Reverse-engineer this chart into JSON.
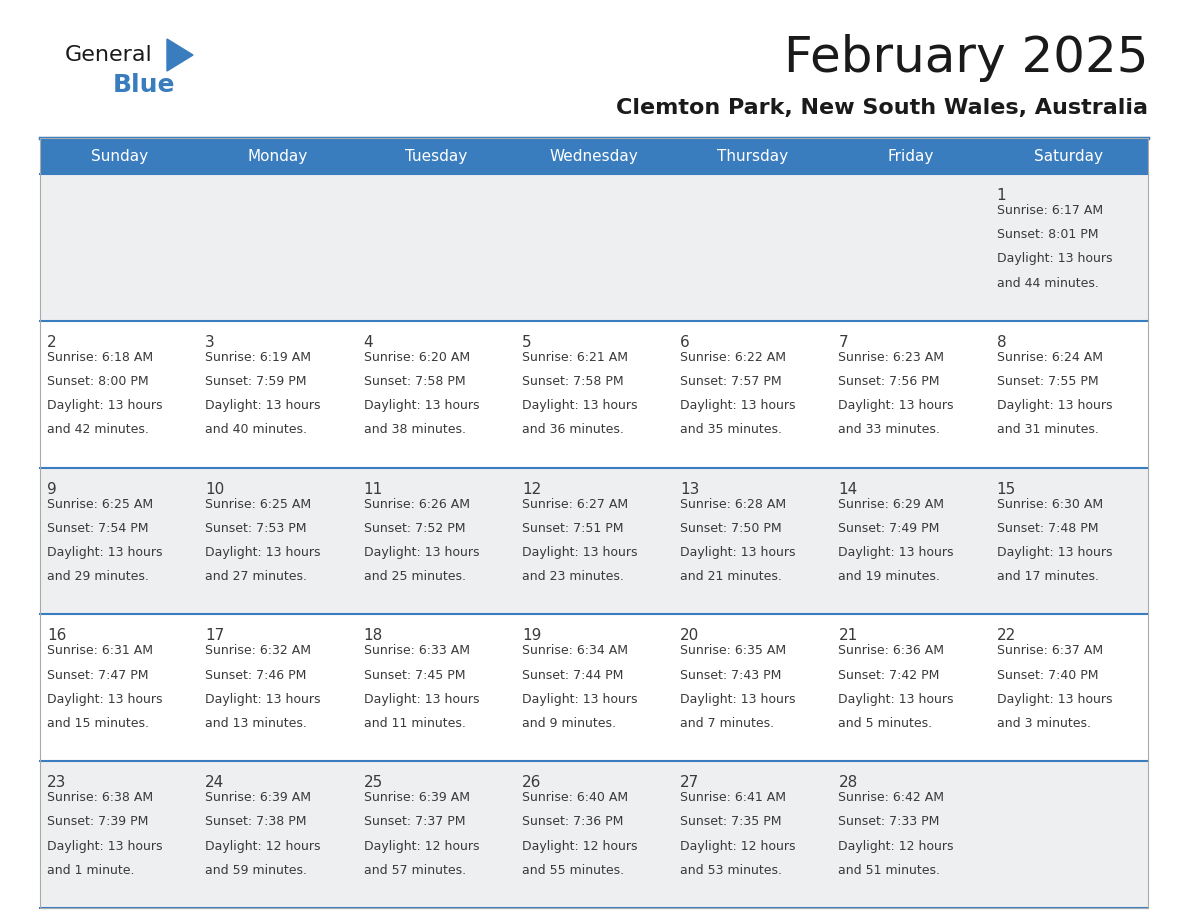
{
  "title": "February 2025",
  "subtitle": "Clemton Park, New South Wales, Australia",
  "header_bg_color": "#3a7dbf",
  "header_text_color": "#ffffff",
  "cell_bg_odd": "#eeeff1",
  "cell_bg_even": "#ffffff",
  "row_line_color": "#3a7dbf",
  "text_color": "#3a3a3a",
  "day_headers": [
    "Sunday",
    "Monday",
    "Tuesday",
    "Wednesday",
    "Thursday",
    "Friday",
    "Saturday"
  ],
  "weeks": [
    [
      {
        "day": null
      },
      {
        "day": null
      },
      {
        "day": null
      },
      {
        "day": null
      },
      {
        "day": null
      },
      {
        "day": null
      },
      {
        "day": 1,
        "sunrise": "6:17 AM",
        "sunset": "8:01 PM",
        "daylight_hours": 13,
        "daylight_minutes": 44
      }
    ],
    [
      {
        "day": 2,
        "sunrise": "6:18 AM",
        "sunset": "8:00 PM",
        "daylight_hours": 13,
        "daylight_minutes": 42
      },
      {
        "day": 3,
        "sunrise": "6:19 AM",
        "sunset": "7:59 PM",
        "daylight_hours": 13,
        "daylight_minutes": 40
      },
      {
        "day": 4,
        "sunrise": "6:20 AM",
        "sunset": "7:58 PM",
        "daylight_hours": 13,
        "daylight_minutes": 38
      },
      {
        "day": 5,
        "sunrise": "6:21 AM",
        "sunset": "7:58 PM",
        "daylight_hours": 13,
        "daylight_minutes": 36
      },
      {
        "day": 6,
        "sunrise": "6:22 AM",
        "sunset": "7:57 PM",
        "daylight_hours": 13,
        "daylight_minutes": 35
      },
      {
        "day": 7,
        "sunrise": "6:23 AM",
        "sunset": "7:56 PM",
        "daylight_hours": 13,
        "daylight_minutes": 33
      },
      {
        "day": 8,
        "sunrise": "6:24 AM",
        "sunset": "7:55 PM",
        "daylight_hours": 13,
        "daylight_minutes": 31
      }
    ],
    [
      {
        "day": 9,
        "sunrise": "6:25 AM",
        "sunset": "7:54 PM",
        "daylight_hours": 13,
        "daylight_minutes": 29
      },
      {
        "day": 10,
        "sunrise": "6:25 AM",
        "sunset": "7:53 PM",
        "daylight_hours": 13,
        "daylight_minutes": 27
      },
      {
        "day": 11,
        "sunrise": "6:26 AM",
        "sunset": "7:52 PM",
        "daylight_hours": 13,
        "daylight_minutes": 25
      },
      {
        "day": 12,
        "sunrise": "6:27 AM",
        "sunset": "7:51 PM",
        "daylight_hours": 13,
        "daylight_minutes": 23
      },
      {
        "day": 13,
        "sunrise": "6:28 AM",
        "sunset": "7:50 PM",
        "daylight_hours": 13,
        "daylight_minutes": 21
      },
      {
        "day": 14,
        "sunrise": "6:29 AM",
        "sunset": "7:49 PM",
        "daylight_hours": 13,
        "daylight_minutes": 19
      },
      {
        "day": 15,
        "sunrise": "6:30 AM",
        "sunset": "7:48 PM",
        "daylight_hours": 13,
        "daylight_minutes": 17
      }
    ],
    [
      {
        "day": 16,
        "sunrise": "6:31 AM",
        "sunset": "7:47 PM",
        "daylight_hours": 13,
        "daylight_minutes": 15
      },
      {
        "day": 17,
        "sunrise": "6:32 AM",
        "sunset": "7:46 PM",
        "daylight_hours": 13,
        "daylight_minutes": 13
      },
      {
        "day": 18,
        "sunrise": "6:33 AM",
        "sunset": "7:45 PM",
        "daylight_hours": 13,
        "daylight_minutes": 11
      },
      {
        "day": 19,
        "sunrise": "6:34 AM",
        "sunset": "7:44 PM",
        "daylight_hours": 13,
        "daylight_minutes": 9
      },
      {
        "day": 20,
        "sunrise": "6:35 AM",
        "sunset": "7:43 PM",
        "daylight_hours": 13,
        "daylight_minutes": 7
      },
      {
        "day": 21,
        "sunrise": "6:36 AM",
        "sunset": "7:42 PM",
        "daylight_hours": 13,
        "daylight_minutes": 5
      },
      {
        "day": 22,
        "sunrise": "6:37 AM",
        "sunset": "7:40 PM",
        "daylight_hours": 13,
        "daylight_minutes": 3
      }
    ],
    [
      {
        "day": 23,
        "sunrise": "6:38 AM",
        "sunset": "7:39 PM",
        "daylight_hours": 13,
        "daylight_minutes": 1
      },
      {
        "day": 24,
        "sunrise": "6:39 AM",
        "sunset": "7:38 PM",
        "daylight_hours": 12,
        "daylight_minutes": 59
      },
      {
        "day": 25,
        "sunrise": "6:39 AM",
        "sunset": "7:37 PM",
        "daylight_hours": 12,
        "daylight_minutes": 57
      },
      {
        "day": 26,
        "sunrise": "6:40 AM",
        "sunset": "7:36 PM",
        "daylight_hours": 12,
        "daylight_minutes": 55
      },
      {
        "day": 27,
        "sunrise": "6:41 AM",
        "sunset": "7:35 PM",
        "daylight_hours": 12,
        "daylight_minutes": 53
      },
      {
        "day": 28,
        "sunrise": "6:42 AM",
        "sunset": "7:33 PM",
        "daylight_hours": 12,
        "daylight_minutes": 51
      },
      {
        "day": null
      }
    ]
  ],
  "logo_text_general": "General",
  "logo_text_blue": "Blue",
  "logo_color_general": "#1a1a1a",
  "logo_color_blue": "#3a7dbf",
  "logo_triangle_color": "#3a7dbf",
  "title_fontsize": 36,
  "subtitle_fontsize": 16,
  "header_fontsize": 11,
  "day_num_fontsize": 11,
  "info_fontsize": 9
}
